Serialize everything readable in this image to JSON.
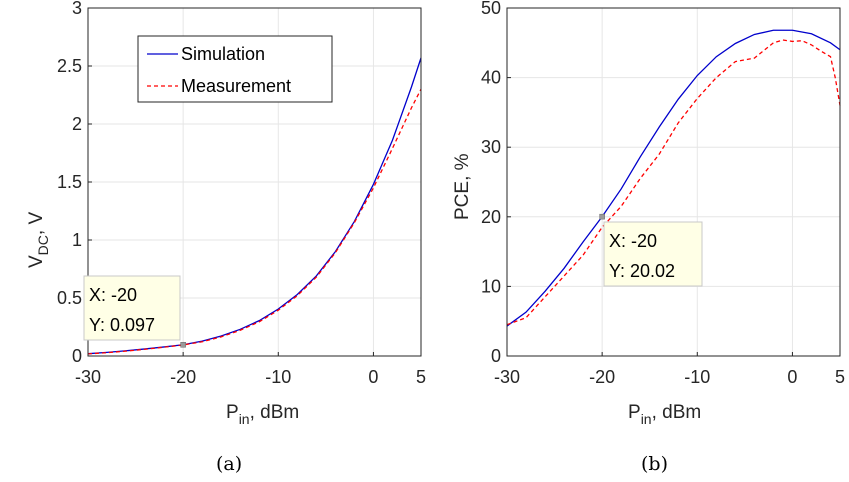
{
  "chart_data": [
    {
      "type": "line",
      "caption": "(a)",
      "xlabel_main": "P",
      "xlabel_sub": "in",
      "xlabel_rest": ", dBm",
      "ylabel_main": "V",
      "ylabel_sub": "DC",
      "ylabel_rest": ", V",
      "xlim": [
        -30,
        5
      ],
      "ylim": [
        0,
        3
      ],
      "xticks": [
        -30,
        -20,
        -10,
        0,
        5
      ],
      "yticks": [
        0,
        0.5,
        1,
        1.5,
        2,
        2.5,
        3
      ],
      "ytick_labels": [
        "0",
        "0.5",
        "1",
        "1.5",
        "2",
        "2.5",
        "3"
      ],
      "grid": true,
      "legend": {
        "position": "top-center",
        "entries": [
          "Simulation",
          "Measurement"
        ]
      },
      "series": [
        {
          "name": "Simulation",
          "color": "#0000cc",
          "style": "solid",
          "x": [
            -30,
            -28,
            -26,
            -24,
            -22,
            -20,
            -18,
            -16,
            -14,
            -12,
            -10,
            -8,
            -6,
            -4,
            -2,
            0,
            2,
            4,
            5
          ],
          "y": [
            0.02,
            0.031,
            0.045,
            0.061,
            0.078,
            0.097,
            0.128,
            0.172,
            0.23,
            0.305,
            0.405,
            0.53,
            0.69,
            0.9,
            1.16,
            1.48,
            1.86,
            2.32,
            2.57
          ]
        },
        {
          "name": "Measurement",
          "color": "#ff0000",
          "style": "dashed",
          "x": [
            -30,
            -28,
            -26,
            -24,
            -22,
            -20,
            -18,
            -16,
            -14,
            -12,
            -10,
            -8,
            -6,
            -4,
            -2,
            0,
            2,
            4,
            5
          ],
          "y": [
            0.018,
            0.029,
            0.042,
            0.058,
            0.076,
            0.095,
            0.123,
            0.165,
            0.222,
            0.295,
            0.395,
            0.52,
            0.68,
            0.89,
            1.15,
            1.45,
            1.79,
            2.14,
            2.3
          ]
        }
      ],
      "datatip": {
        "x_label": "X: -20",
        "y_label": "Y: 0.097",
        "x": -20,
        "y": 0.097
      }
    },
    {
      "type": "line",
      "caption": "(b)",
      "xlabel_main": "P",
      "xlabel_sub": "in",
      "xlabel_rest": ", dBm",
      "ylabel": "PCE, %",
      "xlim": [
        -30,
        5
      ],
      "ylim": [
        0,
        50
      ],
      "xticks": [
        -30,
        -20,
        -10,
        0,
        5
      ],
      "yticks": [
        0,
        10,
        20,
        30,
        40,
        50
      ],
      "ytick_labels": [
        "0",
        "10",
        "20",
        "30",
        "40",
        "50"
      ],
      "grid": true,
      "series": [
        {
          "name": "Simulation",
          "color": "#0000cc",
          "style": "solid",
          "x": [
            -30,
            -28,
            -26,
            -24,
            -22,
            -20,
            -18,
            -16,
            -14,
            -12,
            -10,
            -8,
            -6,
            -4,
            -2,
            0,
            2,
            4,
            5
          ],
          "y": [
            4.3,
            6.3,
            9.3,
            12.6,
            16.4,
            20.02,
            24.0,
            28.6,
            32.9,
            36.9,
            40.3,
            43.0,
            44.9,
            46.2,
            46.8,
            46.8,
            46.3,
            45.0,
            44.0
          ]
        },
        {
          "name": "Measurement",
          "color": "#ff0000",
          "style": "dashed",
          "x": [
            -30,
            -28,
            -26,
            -24,
            -22,
            -20,
            -18,
            -16,
            -14,
            -12,
            -10,
            -8,
            -6,
            -4,
            -2,
            -1,
            0,
            1,
            2,
            3,
            4,
            4.5,
            5
          ],
          "y": [
            4.5,
            5.5,
            8.5,
            11.5,
            14.5,
            18.5,
            21.5,
            25.5,
            29.0,
            33.5,
            37.0,
            40.0,
            42.3,
            42.8,
            45.0,
            45.4,
            45.2,
            45.3,
            44.7,
            43.8,
            43.0,
            40.0,
            36.0
          ]
        }
      ],
      "datatip": {
        "x_label": "X: -20",
        "y_label": "Y: 20.02",
        "x": -20,
        "y": 20.02
      }
    }
  ]
}
